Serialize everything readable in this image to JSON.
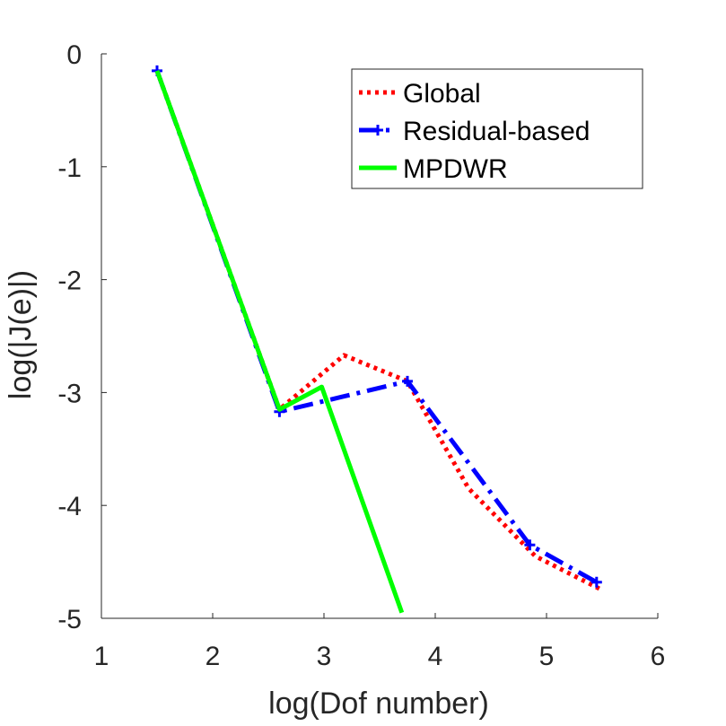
{
  "chart_data": {
    "type": "line",
    "xlabel": "log(Dof number)",
    "ylabel": "log(|J(e)|)",
    "xlim": [
      1,
      6
    ],
    "ylim": [
      -5,
      0
    ],
    "xticks": [
      1,
      2,
      3,
      4,
      5,
      6
    ],
    "yticks": [
      0,
      -1,
      -2,
      -3,
      -4,
      -5
    ],
    "xtick_labels": [
      "1",
      "2",
      "3",
      "4",
      "5",
      "6"
    ],
    "ytick_labels": [
      "0",
      "-1",
      "-2",
      "-3",
      "-4",
      "-5"
    ],
    "grid": false,
    "box": false,
    "legend_position": "top-right",
    "series": [
      {
        "name": "Global",
        "color": "#ff0000",
        "style": "dotted",
        "marker": "none",
        "x": [
          1.5,
          2.6,
          3.18,
          3.75,
          4.3,
          4.9,
          5.5
        ],
        "y": [
          -0.15,
          -3.15,
          -2.67,
          -2.9,
          -3.85,
          -4.45,
          -4.75
        ]
      },
      {
        "name": "Residual-based",
        "color": "#0000ff",
        "style": "dashdot",
        "marker": "plus",
        "x": [
          1.5,
          2.6,
          3.75,
          4.85,
          5.45
        ],
        "y": [
          -0.15,
          -3.17,
          -2.9,
          -4.35,
          -4.68
        ]
      },
      {
        "name": "MPDWR",
        "color": "#00ff00",
        "style": "solid",
        "marker": "none",
        "x": [
          1.5,
          2.6,
          2.98,
          3.7
        ],
        "y": [
          -0.15,
          -3.15,
          -2.95,
          -4.95
        ]
      }
    ]
  }
}
